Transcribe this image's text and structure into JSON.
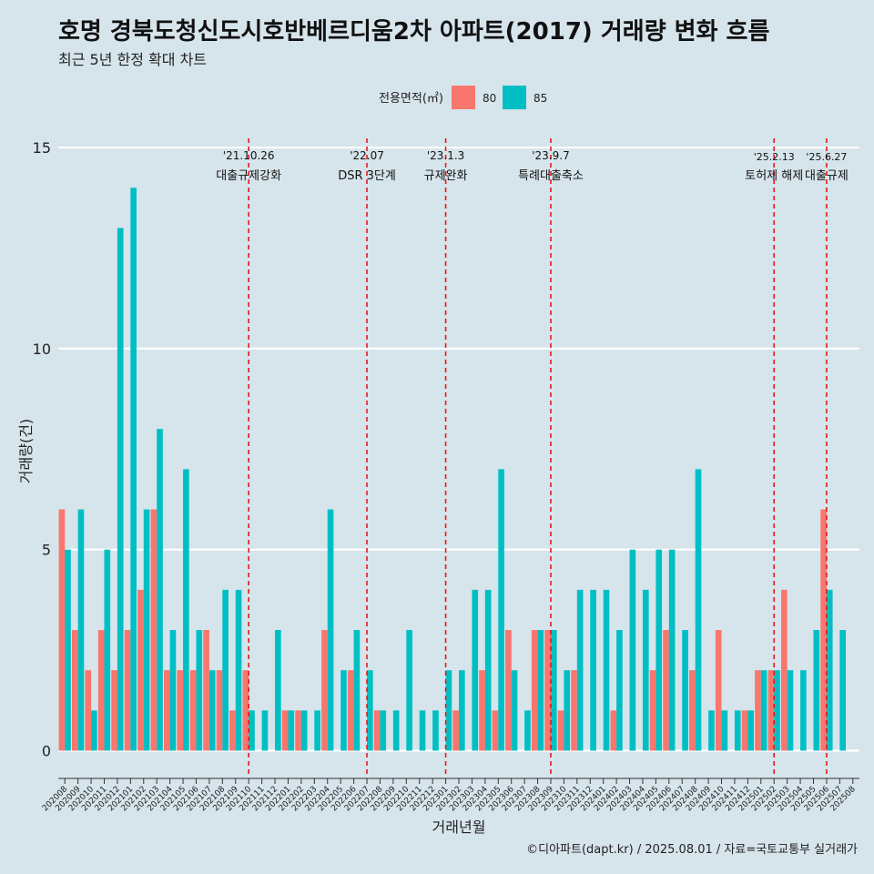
{
  "title": "호명 경북도청신도시호반베르디움2차 아파트(2017) 거래량 변화 흐름",
  "subtitle": "최근 5년 한정 확대 차트",
  "caption": "©디아파트(dapt.kr) / 2025.08.01 / 자료=국토교통부 실거래가",
  "legend": {
    "title": "전용면적(㎡)",
    "placement": "top-center",
    "items": [
      {
        "label": "80",
        "color": "#f8766d"
      },
      {
        "label": "85",
        "color": "#00bfc4"
      }
    ]
  },
  "chart_data": {
    "type": "bar",
    "xlabel": "거래년월",
    "ylabel": "거래량(건)",
    "ylim": [
      -0.6,
      15.5
    ],
    "yticks": [
      0,
      5,
      10,
      15
    ],
    "grid": true,
    "categories": [
      "202008",
      "202009",
      "202010",
      "202011",
      "202012",
      "202101",
      "202102",
      "202103",
      "202104",
      "202105",
      "202106",
      "202107",
      "202108",
      "202109",
      "202110",
      "202111",
      "202112",
      "202201",
      "202202",
      "202203",
      "202204",
      "202205",
      "202206",
      "202207",
      "202208",
      "202209",
      "202210",
      "202211",
      "202212",
      "202301",
      "202302",
      "202303",
      "202304",
      "202305",
      "202306",
      "202307",
      "202308",
      "202309",
      "202310",
      "202311",
      "202312",
      "202401",
      "202402",
      "202403",
      "202404",
      "202405",
      "202406",
      "202407",
      "202408",
      "202409",
      "202410",
      "202411",
      "202412",
      "202501",
      "202502",
      "202503",
      "202504",
      "202505",
      "202506",
      "202507",
      "202508"
    ],
    "series": [
      {
        "name": "80",
        "color": "#f8766d",
        "values": [
          6,
          3,
          2,
          3,
          2,
          3,
          4,
          6,
          2,
          2,
          2,
          3,
          2,
          1,
          2,
          0,
          0,
          1,
          1,
          0,
          3,
          0,
          2,
          0,
          1,
          0,
          0,
          0,
          0,
          0,
          1,
          0,
          2,
          1,
          3,
          0,
          3,
          3,
          1,
          2,
          0,
          0,
          1,
          0,
          0,
          2,
          3,
          0,
          2,
          0,
          3,
          0,
          1,
          2,
          2,
          4,
          0,
          0,
          6,
          0,
          0
        ]
      },
      {
        "name": "85",
        "color": "#00bfc4",
        "values": [
          5,
          6,
          1,
          5,
          13,
          14,
          6,
          8,
          3,
          7,
          3,
          2,
          4,
          4,
          1,
          1,
          3,
          1,
          1,
          1,
          6,
          2,
          3,
          2,
          1,
          1,
          3,
          1,
          1,
          2,
          2,
          4,
          4,
          7,
          2,
          1,
          3,
          3,
          2,
          4,
          4,
          4,
          3,
          5,
          4,
          5,
          5,
          3,
          7,
          1,
          1,
          1,
          1,
          2,
          2,
          2,
          2,
          3,
          4,
          3,
          0
        ]
      }
    ],
    "events": [
      {
        "date": "'21.10.26",
        "label": "대출규제강화",
        "index": 14
      },
      {
        "date": "'22.07",
        "label": "DSR 3단계",
        "index": 23
      },
      {
        "date": "'23.1.3",
        "label": "규제완화",
        "index": 29
      },
      {
        "date": "'23.9.7",
        "label": "특례대출축소",
        "index": 37
      },
      {
        "date": "'25.2.13",
        "label": "토허제 해제",
        "index": 54
      },
      {
        "date": "'25.6.27",
        "label": "대출규제",
        "index": 58
      }
    ]
  }
}
